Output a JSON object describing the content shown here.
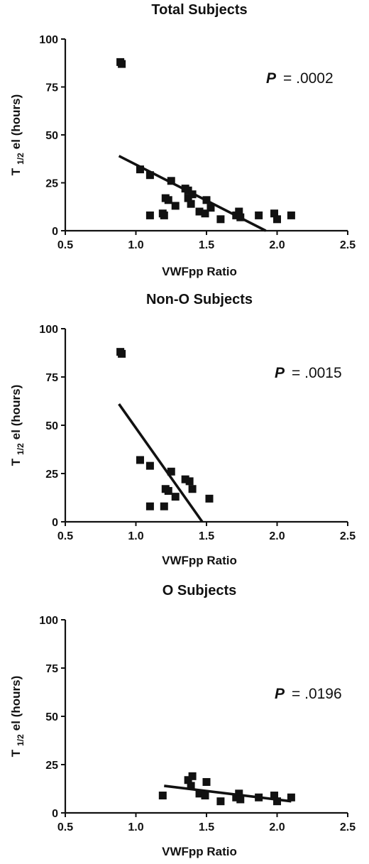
{
  "chart_data": [
    {
      "type": "scatter",
      "title": "Total Subjects",
      "xlabel": "VWFpp Ratio",
      "ylabel_main": "T",
      "ylabel_sub": "1/2",
      "ylabel_rest": "el (hours)",
      "xlim": [
        0.5,
        2.5
      ],
      "ylim": [
        0,
        100
      ],
      "xticks": [
        "0.5",
        "1.0",
        "1.5",
        "2.0",
        "2.5"
      ],
      "yticks": [
        "0",
        "25",
        "50",
        "75",
        "100"
      ],
      "annotation_p": "P",
      "annotation_value": "= .0002",
      "points": [
        {
          "x": 0.89,
          "y": 88
        },
        {
          "x": 0.9,
          "y": 87
        },
        {
          "x": 1.03,
          "y": 32
        },
        {
          "x": 1.1,
          "y": 29
        },
        {
          "x": 1.1,
          "y": 8
        },
        {
          "x": 1.19,
          "y": 9
        },
        {
          "x": 1.2,
          "y": 8
        },
        {
          "x": 1.21,
          "y": 17
        },
        {
          "x": 1.23,
          "y": 16
        },
        {
          "x": 1.25,
          "y": 26
        },
        {
          "x": 1.28,
          "y": 13
        },
        {
          "x": 1.35,
          "y": 22
        },
        {
          "x": 1.37,
          "y": 21
        },
        {
          "x": 1.37,
          "y": 17
        },
        {
          "x": 1.39,
          "y": 14
        },
        {
          "x": 1.4,
          "y": 19
        },
        {
          "x": 1.45,
          "y": 10
        },
        {
          "x": 1.49,
          "y": 9
        },
        {
          "x": 1.5,
          "y": 16
        },
        {
          "x": 1.53,
          "y": 12
        },
        {
          "x": 1.6,
          "y": 6
        },
        {
          "x": 1.71,
          "y": 8
        },
        {
          "x": 1.73,
          "y": 10
        },
        {
          "x": 1.74,
          "y": 7
        },
        {
          "x": 1.87,
          "y": 8
        },
        {
          "x": 1.98,
          "y": 9
        },
        {
          "x": 2.0,
          "y": 6
        },
        {
          "x": 2.1,
          "y": 8
        }
      ],
      "fit_line": [
        {
          "x": 0.88,
          "y": 39
        },
        {
          "x": 1.92,
          "y": 0
        }
      ]
    },
    {
      "type": "scatter",
      "title": "Non-O Subjects",
      "xlabel": "VWFpp Ratio",
      "ylabel_main": "T",
      "ylabel_sub": "1/2",
      "ylabel_rest": "el (hours)",
      "xlim": [
        0.5,
        2.5
      ],
      "ylim": [
        0,
        100
      ],
      "xticks": [
        "0.5",
        "1.0",
        "1.5",
        "2.0",
        "2.5"
      ],
      "yticks": [
        "0",
        "25",
        "50",
        "75",
        "100"
      ],
      "annotation_p": "P",
      "annotation_value": "= .0015",
      "points": [
        {
          "x": 0.89,
          "y": 88
        },
        {
          "x": 0.9,
          "y": 87
        },
        {
          "x": 1.03,
          "y": 32
        },
        {
          "x": 1.1,
          "y": 29
        },
        {
          "x": 1.1,
          "y": 8
        },
        {
          "x": 1.2,
          "y": 8
        },
        {
          "x": 1.21,
          "y": 17
        },
        {
          "x": 1.23,
          "y": 16
        },
        {
          "x": 1.25,
          "y": 26
        },
        {
          "x": 1.28,
          "y": 13
        },
        {
          "x": 1.35,
          "y": 22
        },
        {
          "x": 1.38,
          "y": 21
        },
        {
          "x": 1.4,
          "y": 17
        },
        {
          "x": 1.52,
          "y": 12
        }
      ],
      "fit_line": [
        {
          "x": 0.88,
          "y": 61
        },
        {
          "x": 1.47,
          "y": 0
        }
      ]
    },
    {
      "type": "scatter",
      "title": "O Subjects",
      "xlabel": "VWFpp Ratio",
      "ylabel_main": "T",
      "ylabel_sub": "1/2",
      "ylabel_rest": "el (hours)",
      "xlim": [
        0.5,
        2.5
      ],
      "ylim": [
        0,
        100
      ],
      "xticks": [
        "0.5",
        "1.0",
        "1.5",
        "2.0",
        "2.5"
      ],
      "yticks": [
        "0",
        "25",
        "50",
        "75",
        "100"
      ],
      "annotation_p": "P",
      "annotation_value": "= .0196",
      "points": [
        {
          "x": 1.19,
          "y": 9
        },
        {
          "x": 1.37,
          "y": 17
        },
        {
          "x": 1.39,
          "y": 14
        },
        {
          "x": 1.4,
          "y": 19
        },
        {
          "x": 1.45,
          "y": 10
        },
        {
          "x": 1.49,
          "y": 9
        },
        {
          "x": 1.5,
          "y": 16
        },
        {
          "x": 1.6,
          "y": 6
        },
        {
          "x": 1.71,
          "y": 8
        },
        {
          "x": 1.73,
          "y": 10
        },
        {
          "x": 1.74,
          "y": 7
        },
        {
          "x": 1.87,
          "y": 8
        },
        {
          "x": 1.98,
          "y": 9
        },
        {
          "x": 2.0,
          "y": 6
        },
        {
          "x": 2.1,
          "y": 8
        }
      ],
      "fit_line": [
        {
          "x": 1.2,
          "y": 14
        },
        {
          "x": 2.1,
          "y": 6
        }
      ]
    }
  ]
}
